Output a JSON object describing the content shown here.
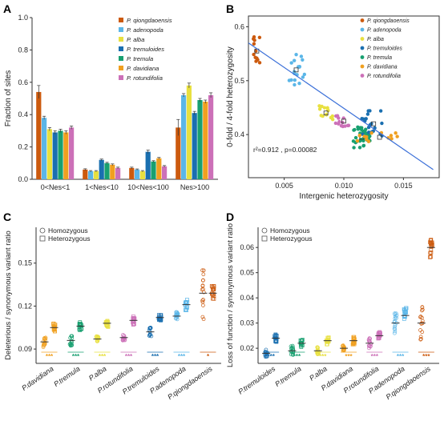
{
  "colors": {
    "P. qiongdaoensis": "#cc5a0e",
    "P. adenopoda": "#5bb6e8",
    "P. alba": "#e8e040",
    "P. tremuloides": "#1a6fb0",
    "P. tremula": "#18a070",
    "P. davidiana": "#f0a020",
    "P. rotundifolia": "#cc70b8"
  },
  "chart_data": [
    {
      "panel": "A",
      "type": "bar",
      "ylabel": "Fraction of sites",
      "ylim": [
        0,
        1.0
      ],
      "yticks": [
        "0.0",
        "0.2",
        "0.4",
        "0.6",
        "0.8",
        "1.0"
      ],
      "categories": [
        "0<Nes<1",
        "1<Nes<10",
        "10<Nes<100",
        "Nes>100"
      ],
      "series": [
        {
          "name": "P. qiongdaoensis",
          "values": [
            0.54,
            0.06,
            0.07,
            0.32
          ],
          "err": [
            0.04,
            0.005,
            0.005,
            0.05
          ]
        },
        {
          "name": "P. adenopoda",
          "values": [
            0.38,
            0.05,
            0.06,
            0.52
          ],
          "err": [
            0.01,
            0.004,
            0.004,
            0.01
          ]
        },
        {
          "name": "P. alba",
          "values": [
            0.31,
            0.05,
            0.05,
            0.58
          ],
          "err": [
            0.01,
            0.004,
            0.004,
            0.015
          ]
        },
        {
          "name": "P. tremuloides",
          "values": [
            0.29,
            0.12,
            0.17,
            0.41
          ],
          "err": [
            0.01,
            0.005,
            0.01,
            0.01
          ]
        },
        {
          "name": "P. tremula",
          "values": [
            0.3,
            0.1,
            0.11,
            0.49
          ],
          "err": [
            0.01,
            0.005,
            0.005,
            0.01
          ]
        },
        {
          "name": "P. davidiana",
          "values": [
            0.29,
            0.09,
            0.13,
            0.48
          ],
          "err": [
            0.01,
            0.005,
            0.005,
            0.01
          ]
        },
        {
          "name": "P. rotundifolia",
          "values": [
            0.32,
            0.07,
            0.08,
            0.52
          ],
          "err": [
            0.01,
            0.005,
            0.005,
            0.015
          ]
        }
      ],
      "legend_position": "top-right"
    },
    {
      "panel": "B",
      "type": "scatter",
      "xlabel": "Intergenic heterozygosity",
      "ylabel": "0-fold / 4-fold heterozygosity",
      "xlim": [
        0.002,
        0.018
      ],
      "ylim": [
        0.32,
        0.62
      ],
      "xticks": [
        "0.005",
        "0.010",
        "0.015"
      ],
      "yticks": [
        "0.4",
        "0.5",
        "0.6"
      ],
      "annotation": "r²=0.912 , p=0.00082",
      "fit_line": {
        "x": [
          0.002,
          0.0175
        ],
        "y": [
          0.57,
          0.335
        ]
      },
      "groups": [
        {
          "name": "P. qiongdaoensis",
          "center": [
            0.0027,
            0.555
          ],
          "spread": [
            0.0003,
            0.03
          ],
          "n": 12
        },
        {
          "name": "P. adenopoda",
          "center": [
            0.006,
            0.52
          ],
          "spread": [
            0.0007,
            0.03
          ],
          "n": 18
        },
        {
          "name": "P. alba",
          "center": [
            0.0085,
            0.44
          ],
          "spread": [
            0.0006,
            0.015
          ],
          "n": 14
        },
        {
          "name": "P. rotundifolia",
          "center": [
            0.01,
            0.425
          ],
          "spread": [
            0.0007,
            0.01
          ],
          "n": 14
        },
        {
          "name": "P. tremula",
          "center": [
            0.0115,
            0.395
          ],
          "spread": [
            0.0007,
            0.02
          ],
          "n": 35
        },
        {
          "name": "P. tremuloides",
          "center": [
            0.0125,
            0.42
          ],
          "spread": [
            0.001,
            0.025
          ],
          "n": 20
        },
        {
          "name": "P. davidiana",
          "center": [
            0.013,
            0.395
          ],
          "spread": [
            0.002,
            0.01
          ],
          "n": 14
        }
      ],
      "legend_position": "top-right"
    },
    {
      "panel": "C",
      "type": "scatter",
      "ylabel": "Deleterious / synonymous variant ratio",
      "ylim": [
        0.08,
        0.175
      ],
      "yticks": [
        "0.09",
        "0.12",
        "0.15"
      ],
      "legend": [
        "Homozygous",
        "Heterozygous"
      ],
      "categories": [
        "P.davidiana",
        "P.tremula",
        "P.alba",
        "P.rotundifolia",
        "P.tremuloides",
        "P.adenopoda",
        "P.qiongdaoensis"
      ],
      "species_keys": [
        "P. davidiana",
        "P. tremula",
        "P. alba",
        "P. rotundifolia",
        "P. tremuloides",
        "P. adenopoda",
        "P. qiongdaoensis"
      ],
      "homozygous_mean": [
        0.095,
        0.096,
        0.097,
        0.098,
        0.102,
        0.113,
        0.129
      ],
      "homozygous_spread": [
        0.004,
        0.004,
        0.002,
        0.002,
        0.003,
        0.003,
        0.02
      ],
      "heterozygous_mean": [
        0.105,
        0.106,
        0.108,
        0.11,
        0.112,
        0.121,
        0.129
      ],
      "heterozygous_spread": [
        0.003,
        0.003,
        0.003,
        0.003,
        0.002,
        0.004,
        0.005
      ],
      "significance": [
        "***",
        "***",
        "***",
        "***",
        "***",
        "***",
        "*"
      ]
    },
    {
      "panel": "D",
      "type": "scatter",
      "ylabel": "Loss of function / synonymous variant ratio",
      "ylim": [
        0.014,
        0.068
      ],
      "yticks": [
        "0.02",
        "0.03",
        "0.04",
        "0.05",
        "0.06"
      ],
      "legend": [
        "Homozygous",
        "Heterozygous"
      ],
      "categories": [
        "P.tremuloides",
        "P.tremula",
        "P.alba",
        "P.davidiana",
        "P.rotundifolia",
        "P.adenopoda",
        "P.qiongdaoensis"
      ],
      "species_keys": [
        "P. tremuloides",
        "P. tremula",
        "P. alba",
        "P. davidiana",
        "P. rotundifolia",
        "P. adenopoda",
        "P. qiongdaoensis"
      ],
      "homozygous_mean": [
        0.018,
        0.019,
        0.019,
        0.02,
        0.022,
        0.03,
        0.03
      ],
      "homozygous_spread": [
        0.0015,
        0.002,
        0.0015,
        0.0015,
        0.002,
        0.004,
        0.008
      ],
      "heterozygous_mean": [
        0.024,
        0.022,
        0.023,
        0.023,
        0.025,
        0.033,
        0.06
      ],
      "heterozygous_spread": [
        0.0015,
        0.0015,
        0.0015,
        0.0015,
        0.0015,
        0.003,
        0.004
      ],
      "significance": [
        "***",
        "***",
        "***",
        "***",
        "***",
        "***",
        "***"
      ]
    }
  ]
}
